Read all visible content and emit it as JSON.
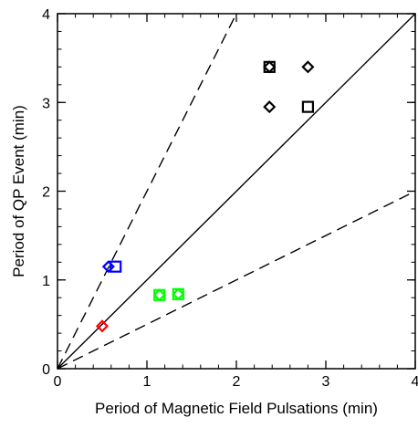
{
  "chart_data": {
    "type": "scatter",
    "xlabel": "Period of Magnetic Field Pulsations (min)",
    "ylabel": "Period of QP Event (min)",
    "xlim": [
      0,
      4
    ],
    "ylim": [
      0,
      4
    ],
    "xticks": [
      "0",
      "1",
      "2",
      "3",
      "4"
    ],
    "yticks": [
      "0",
      "1",
      "2",
      "3",
      "4"
    ],
    "grid": false,
    "reference_lines": [
      {
        "style": "solid",
        "slope": 1
      },
      {
        "style": "dashed",
        "slope": 2
      },
      {
        "style": "dashed",
        "slope": 0.5
      }
    ],
    "points": [
      {
        "x": 2.37,
        "y": 3.4,
        "marker": "square",
        "color": "#000000"
      },
      {
        "x": 2.37,
        "y": 3.4,
        "marker": "diamond",
        "color": "#000000"
      },
      {
        "x": 2.8,
        "y": 3.4,
        "marker": "diamond",
        "color": "#000000"
      },
      {
        "x": 2.37,
        "y": 2.95,
        "marker": "diamond",
        "color": "#000000"
      },
      {
        "x": 2.8,
        "y": 2.95,
        "marker": "square",
        "color": "#000000"
      },
      {
        "x": 0.65,
        "y": 1.15,
        "marker": "square",
        "color": "#0000ff"
      },
      {
        "x": 0.57,
        "y": 1.15,
        "marker": "diamond",
        "color": "#0000ff"
      },
      {
        "x": 1.14,
        "y": 0.83,
        "marker": "square",
        "color": "#00ff00"
      },
      {
        "x": 1.14,
        "y": 0.83,
        "marker": "diamond",
        "color": "#00ff00"
      },
      {
        "x": 1.35,
        "y": 0.84,
        "marker": "square",
        "color": "#00ff00"
      },
      {
        "x": 1.35,
        "y": 0.84,
        "marker": "diamond",
        "color": "#00ff00"
      },
      {
        "x": 0.5,
        "y": 0.48,
        "marker": "diamond",
        "color": "#ff0000"
      }
    ]
  }
}
